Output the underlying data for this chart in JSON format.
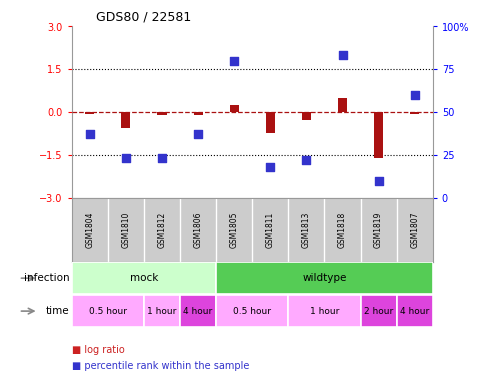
{
  "title": "GDS80 / 22581",
  "samples": [
    "GSM1804",
    "GSM1810",
    "GSM1812",
    "GSM1806",
    "GSM1805",
    "GSM1811",
    "GSM1813",
    "GSM1818",
    "GSM1819",
    "GSM1807"
  ],
  "log_ratio": [
    -0.08,
    -0.55,
    -0.12,
    -0.12,
    0.25,
    -0.75,
    -0.28,
    0.5,
    -1.6,
    -0.08
  ],
  "percentile": [
    37,
    23,
    23,
    37,
    80,
    18,
    22,
    83,
    10,
    60
  ],
  "ylim_left": [
    -3,
    3
  ],
  "ylim_right": [
    0,
    100
  ],
  "yticks_left": [
    -3,
    -1.5,
    0,
    1.5,
    3
  ],
  "yticks_right": [
    0,
    25,
    50,
    75,
    100
  ],
  "dotted_lines": [
    1.5,
    -1.5
  ],
  "bar_color": "#aa1111",
  "dot_color": "#3333cc",
  "infection_mock_color": "#ccffcc",
  "infection_wildtype_color": "#55cc55",
  "infection_labels": [
    {
      "label": "mock",
      "start": 0,
      "end": 4
    },
    {
      "label": "wildtype",
      "start": 4,
      "end": 10
    }
  ],
  "time_labels": [
    {
      "label": "0.5 hour",
      "start": 0,
      "end": 2,
      "color": "#ffaaff"
    },
    {
      "label": "1 hour",
      "start": 2,
      "end": 3,
      "color": "#ffaaff"
    },
    {
      "label": "4 hour",
      "start": 3,
      "end": 4,
      "color": "#dd44dd"
    },
    {
      "label": "0.5 hour",
      "start": 4,
      "end": 6,
      "color": "#ffaaff"
    },
    {
      "label": "1 hour",
      "start": 6,
      "end": 8,
      "color": "#ffaaff"
    },
    {
      "label": "2 hour",
      "start": 8,
      "end": 9,
      "color": "#dd44dd"
    },
    {
      "label": "4 hour",
      "start": 9,
      "end": 10,
      "color": "#dd44dd"
    }
  ],
  "legend_items": [
    {
      "label": "log ratio",
      "color": "#cc2222"
    },
    {
      "label": "percentile rank within the sample",
      "color": "#3333cc"
    }
  ],
  "xlabel_infection": "infection",
  "xlabel_time": "time",
  "bg_color": "#ffffff",
  "sample_bg": "#cccccc",
  "right_yaxis_pct_label": "100%"
}
